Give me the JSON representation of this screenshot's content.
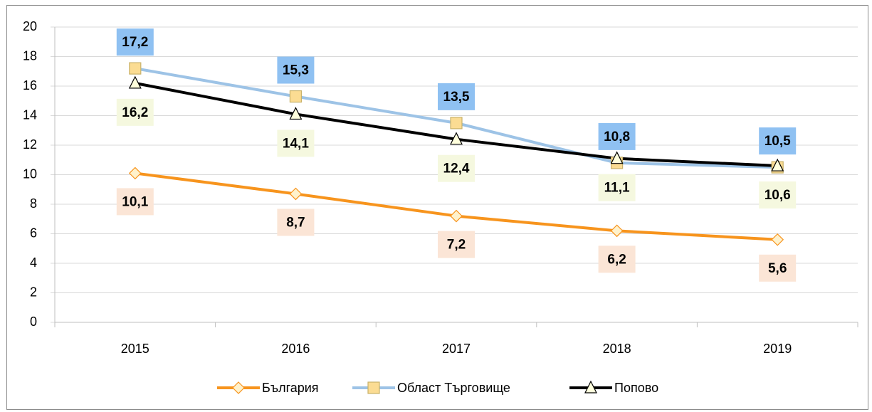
{
  "chart_data": {
    "type": "line",
    "categories": [
      "2015",
      "2016",
      "2017",
      "2018",
      "2019"
    ],
    "series": [
      {
        "name": "България",
        "color": "#F7941D",
        "marker": "diamond",
        "marker_fill": "#FFF2CC",
        "label_background": "#FBE5D6",
        "values": [
          10.1,
          8.7,
          7.2,
          6.2,
          5.6
        ],
        "value_labels": [
          "10,1",
          "8,7",
          "7,2",
          "6,2",
          "5,6"
        ]
      },
      {
        "name": "Област Търговище",
        "color": "#9DC3E6",
        "marker": "square",
        "marker_fill": "#FBDC93",
        "label_background": "#8FC1F2",
        "values": [
          17.2,
          15.3,
          13.5,
          10.8,
          10.5
        ],
        "value_labels": [
          "17,2",
          "15,3",
          "13,5",
          "10,8",
          "10,5"
        ]
      },
      {
        "name": "Попово",
        "color": "#000000",
        "marker": "triangle",
        "marker_fill": "#FFFFDD",
        "label_background": "#F5F8DF",
        "values": [
          16.2,
          14.1,
          12.4,
          11.1,
          10.6
        ],
        "value_labels": [
          "16,2",
          "14,1",
          "12,4",
          "11,1",
          "10,6"
        ]
      }
    ],
    "ylim": [
      0,
      20
    ],
    "yticks": [
      0,
      2,
      4,
      6,
      8,
      10,
      12,
      14,
      16,
      18,
      20
    ],
    "grid": true,
    "legend": "bottom"
  }
}
